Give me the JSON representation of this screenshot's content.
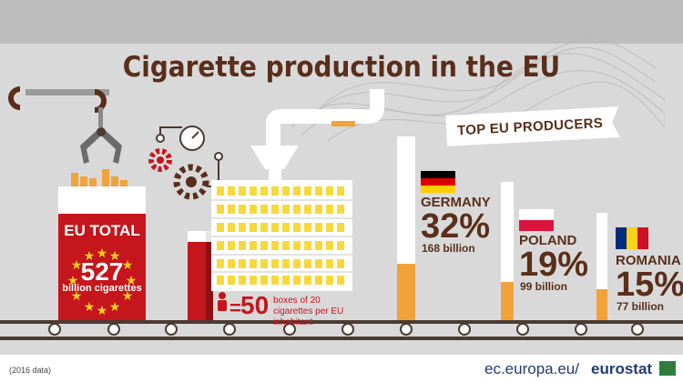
{
  "title": "Cigarette production in the EU",
  "ribbon_label": "TOP EU PRODUCERS",
  "eu_total": {
    "label": "EU TOTAL",
    "value": "527",
    "unit": "billion cigarettes",
    "value_billion": 527
  },
  "per_inhabitant": {
    "equals": "=",
    "value": "50",
    "description": "boxes of 20 cigarettes per EU inhabitant"
  },
  "producers": [
    {
      "country": "GERMANY",
      "percent": "32%",
      "amount": "168 billion",
      "share": 32,
      "flag": "germany-flag"
    },
    {
      "country": "POLAND",
      "percent": "19%",
      "amount": "99 billion",
      "share": 19,
      "flag": "poland-flag"
    },
    {
      "country": "ROMANIA",
      "percent": "15%",
      "amount": "77 billion",
      "share": 15,
      "flag": "romania-flag"
    }
  ],
  "footer": {
    "note": "(2016 data)",
    "url": "ec.europa.eu/",
    "brand": "eurostat"
  },
  "colors": {
    "background": "#d9d9d9",
    "brown": "#5a2e1a",
    "red": "#c4161c",
    "filter": "#f2a23a",
    "machine": "#ffffff",
    "gear": "#7a3a22",
    "dark": "#4a3b33"
  },
  "icons": [
    "person-icon",
    "gear-icon",
    "dial-icon",
    "claw-icon",
    "eu-star-icon"
  ]
}
